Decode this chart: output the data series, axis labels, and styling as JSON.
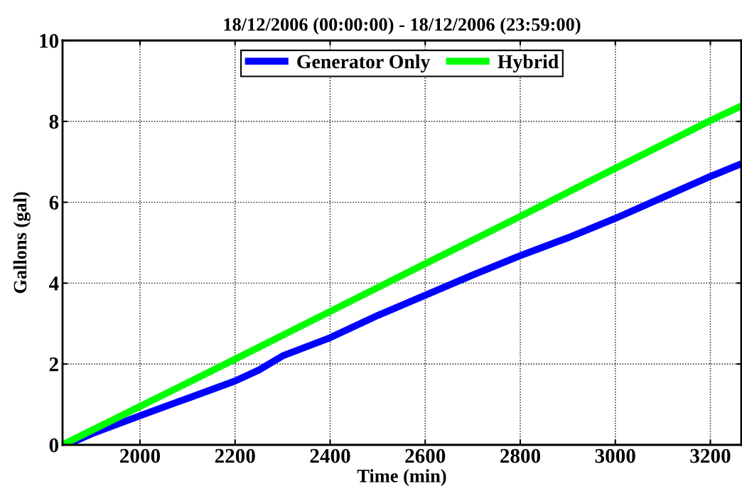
{
  "chart_data": {
    "type": "line",
    "title": "18/12/2006 (00:00:00) - 18/12/2006 (23:59:00)",
    "xlabel": "Time (min)",
    "ylabel": "Gallons (gal)",
    "series": [
      {
        "name": "Generator Only",
        "color": "#0000ff",
        "x": [
          1845,
          1900,
          2000,
          2100,
          2200,
          2250,
          2300,
          2400,
          2500,
          2600,
          2700,
          2800,
          2900,
          3000,
          3100,
          3200,
          3265
        ],
        "values": [
          0,
          0.28,
          0.72,
          1.15,
          1.58,
          1.85,
          2.2,
          2.65,
          3.2,
          3.7,
          4.2,
          4.68,
          5.12,
          5.6,
          6.12,
          6.64,
          6.95
        ]
      },
      {
        "name": "Hybrid",
        "color": "#00ff00",
        "x": [
          1837,
          2000,
          2200,
          2400,
          2600,
          2800,
          3000,
          3200,
          3265
        ],
        "values": [
          0,
          0.95,
          2.12,
          3.3,
          4.48,
          5.65,
          6.84,
          8.02,
          8.38
        ]
      }
    ],
    "xlim": [
      1837,
      3265
    ],
    "xticks": [
      2000,
      2200,
      2400,
      2600,
      2800,
      3000,
      3200
    ],
    "ylim": [
      0,
      10
    ],
    "yticks": [
      0,
      2,
      4,
      6,
      8,
      10
    ],
    "grid": true,
    "legend": "top",
    "line_style": "solid",
    "marker": "none"
  }
}
